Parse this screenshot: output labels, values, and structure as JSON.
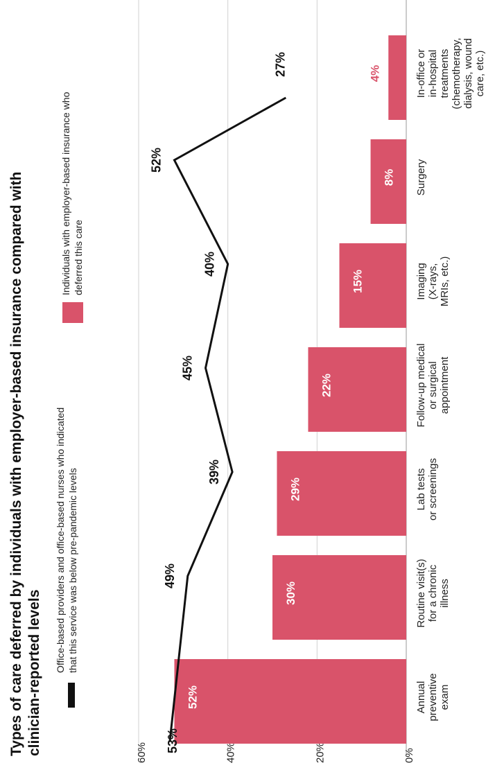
{
  "chart_data": {
    "type": "bar",
    "title": "Types of care deferred by individuals with employer-based insurance compared with clinician-reported levels",
    "orientation": "rotated-90-ccw",
    "categories": [
      "Annual preventive exam",
      "Routine visit(s) for a chronic illness",
      "Lab tests or screenings",
      "Follow-up medical or surgical appointment",
      "Imaging (X-rays, MRIs, etc.)",
      "Surgery",
      "In-office or in-hospital treatments (chemotherapy, dialysis, wound care, etc.)"
    ],
    "category_lines": [
      [
        "Annual",
        "preventive",
        "exam"
      ],
      [
        "Routine visit(s)",
        "for a chronic",
        "illness"
      ],
      [
        "Lab tests",
        "or screenings"
      ],
      [
        "Follow-up medical",
        "or surgical",
        "appointment"
      ],
      [
        "Imaging",
        "(X-rays,",
        "MRIs, etc.)"
      ],
      [
        "Surgery"
      ],
      [
        "In-office or",
        "in-hospital",
        "treatments",
        "(chemotherapy,",
        "dialysis, wound",
        "care, etc.)"
      ]
    ],
    "series": [
      {
        "name": "Individuals with employer-based insurance who deferred this care",
        "name_lines": [
          "Individuals with employer-based insurance who",
          "deferred this care"
        ],
        "kind": "bar",
        "color": "#d9536a",
        "values": [
          52,
          30,
          29,
          22,
          15,
          8,
          4
        ],
        "labels": [
          "52%",
          "30%",
          "29%",
          "22%",
          "15%",
          "8%",
          "4%"
        ]
      },
      {
        "name": "Office-based providers and office-based nurses who indicated that this service was below pre-pandemic levels",
        "name_lines": [
          "Office-based providers and office-based nurses who indicated",
          "that this service was below pre-pandemic levels"
        ],
        "kind": "line",
        "color": "#111111",
        "values": [
          53,
          49,
          39,
          45,
          40,
          52,
          27
        ],
        "labels": [
          "53%",
          "49%",
          "39%",
          "45%",
          "40%",
          "52%",
          "27%"
        ]
      }
    ],
    "ylim": [
      0,
      60
    ],
    "yticks": [
      0,
      20,
      40,
      60
    ],
    "ytick_labels": [
      "0%",
      "20%",
      "40%",
      "60%"
    ],
    "grid": true,
    "legend_position": "top",
    "colors": {
      "bar": "#d9536a",
      "line": "#111111",
      "small_bar_label": "#d9536a",
      "grid": "#d0d0d0",
      "text": "#222222"
    }
  }
}
